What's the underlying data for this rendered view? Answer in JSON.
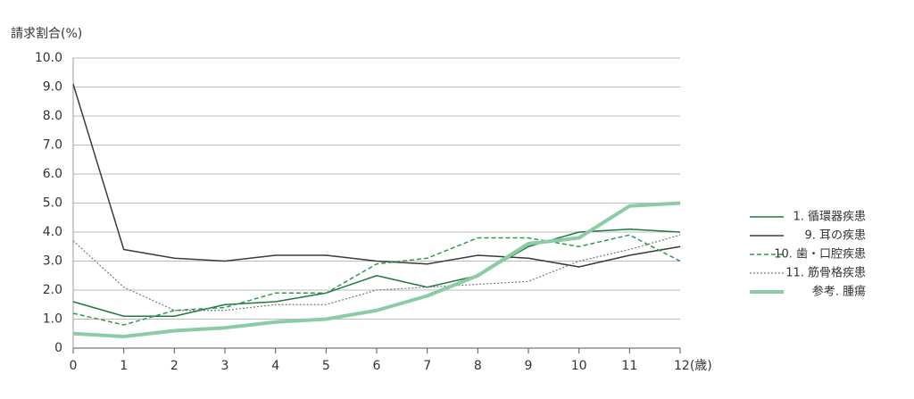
{
  "chart_data": {
    "type": "line",
    "y_label": "請求割合(%)",
    "x": [
      0,
      1,
      2,
      3,
      4,
      5,
      6,
      7,
      8,
      9,
      10,
      11,
      12
    ],
    "xlim": [
      0,
      12
    ],
    "xticks": [
      0,
      1,
      2,
      3,
      4,
      5,
      6,
      7,
      8,
      9,
      10,
      11,
      {
        "value": 12,
        "label": "12(歳)"
      }
    ],
    "ylim": [
      0,
      10
    ],
    "yticks": [
      0,
      {
        "value": 1,
        "label": "1.0"
      },
      {
        "value": 2,
        "label": "2.0"
      },
      {
        "value": 3,
        "label": "3.0"
      },
      {
        "value": 4,
        "label": "4.0"
      },
      {
        "value": 5,
        "label": "5.0"
      },
      {
        "value": 6,
        "label": "6.0"
      },
      {
        "value": 7,
        "label": "7.0"
      },
      {
        "value": 8,
        "label": "8.0"
      },
      {
        "value": 9,
        "label": "9.0"
      },
      {
        "value": 10,
        "label": "10.0"
      }
    ],
    "grid": true,
    "legend": "right",
    "series": [
      {
        "name": "1. 循環器疾患",
        "color": "#1e7a3c",
        "style": "solid",
        "values": [
          1.6,
          1.1,
          1.1,
          1.5,
          1.6,
          1.9,
          2.5,
          2.1,
          2.5,
          3.5,
          4.0,
          4.1,
          4.0
        ]
      },
      {
        "name": "9. 耳の疾患",
        "color": "#3a3a3a",
        "style": "solid",
        "values": [
          9.1,
          3.4,
          3.1,
          3.0,
          3.2,
          3.2,
          3.0,
          2.9,
          3.2,
          3.1,
          2.8,
          3.2,
          3.5
        ]
      },
      {
        "name": "10. 歯・口腔疾患",
        "color": "#2e9a4e",
        "style": "dashed",
        "values": [
          1.2,
          0.8,
          1.3,
          1.4,
          1.9,
          1.9,
          2.9,
          3.1,
          3.8,
          3.8,
          3.5,
          3.9,
          3.0
        ]
      },
      {
        "name": "11. 筋骨格疾患",
        "color": "#777777",
        "style": "dotted",
        "values": [
          3.7,
          2.1,
          1.3,
          1.3,
          1.5,
          1.5,
          2.0,
          2.1,
          2.2,
          2.3,
          3.0,
          3.4,
          3.9
        ]
      },
      {
        "name": "参考. 腫瘍",
        "color": "#8ccca4",
        "style": "thick",
        "values": [
          0.5,
          0.4,
          0.6,
          0.7,
          0.9,
          1.0,
          1.3,
          1.8,
          2.5,
          3.6,
          3.8,
          4.9,
          5.0
        ]
      }
    ]
  }
}
